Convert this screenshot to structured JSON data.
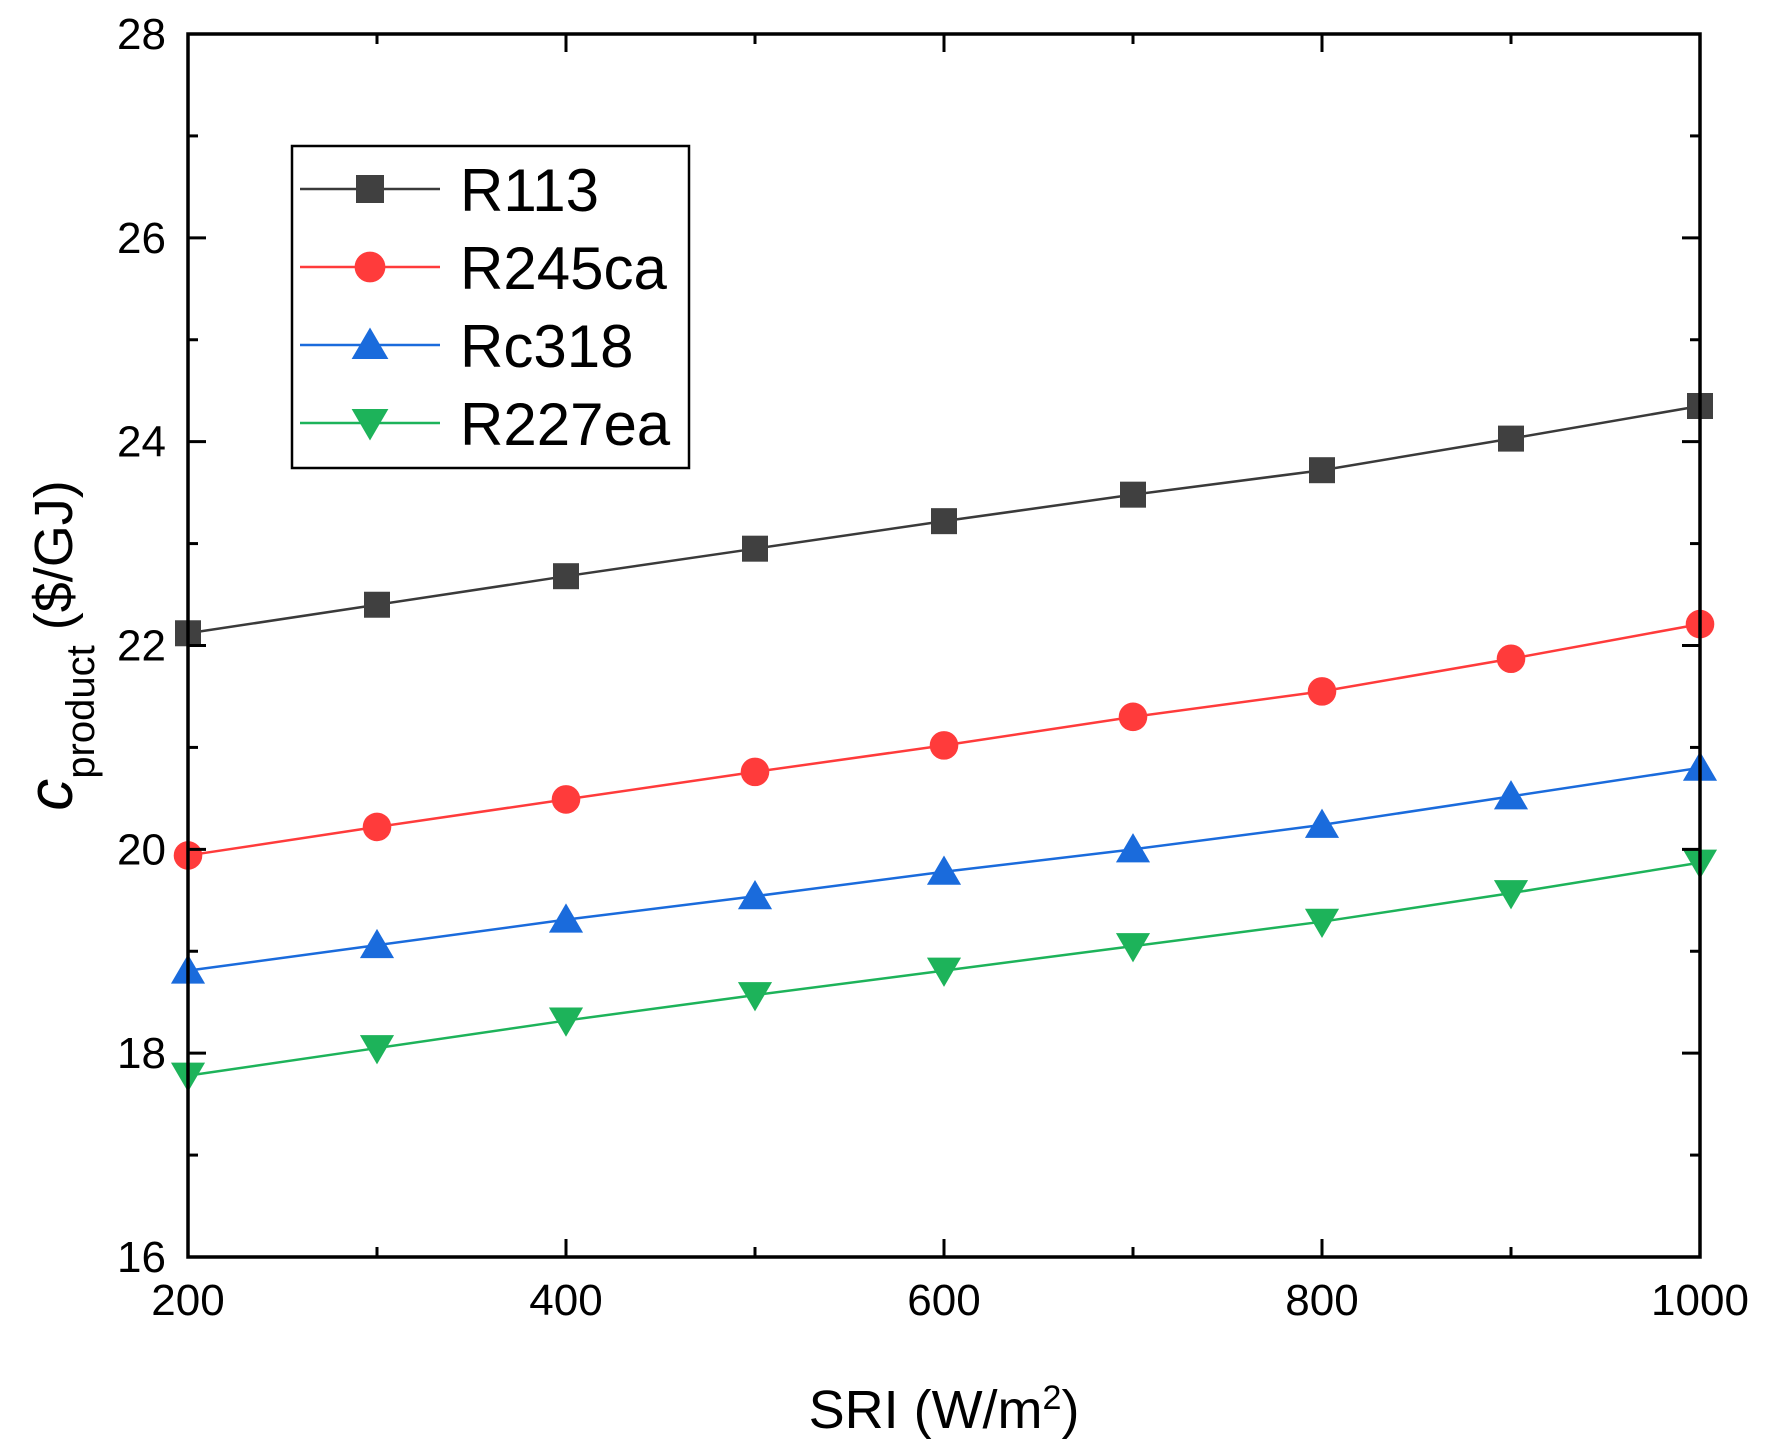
{
  "chart_data": {
    "type": "line",
    "title": "",
    "xlabel": {
      "main": "SRI (W/m",
      "sup": "2",
      "end": ")"
    },
    "ylabel": {
      "main": "c",
      "sub": "product",
      "end": " ($/GJ)"
    },
    "xlim": [
      200,
      1000
    ],
    "ylim": [
      16,
      28
    ],
    "xticks": [
      200,
      400,
      600,
      800,
      1000
    ],
    "yticks": [
      16,
      18,
      20,
      22,
      24,
      26,
      28
    ],
    "xminor": [
      300,
      500,
      700,
      900
    ],
    "yminor": [
      17,
      19,
      21,
      23,
      25,
      27
    ],
    "grid": false,
    "legend_position": "top-left",
    "x": [
      200,
      300,
      400,
      500,
      600,
      700,
      800,
      900,
      1000
    ],
    "series": [
      {
        "name": "R113",
        "color": "#404040",
        "line_color": "#3a3a3a",
        "marker": "square",
        "values": [
          22.12,
          22.4,
          22.68,
          22.95,
          23.22,
          23.48,
          23.72,
          24.03,
          24.35
        ]
      },
      {
        "name": "R245ca",
        "color": "#ff3b3b",
        "line_color": "#ff3b3b",
        "marker": "circle",
        "values": [
          19.94,
          20.22,
          20.49,
          20.76,
          21.02,
          21.3,
          21.55,
          21.87,
          22.21
        ]
      },
      {
        "name": "Rc318",
        "color": "#1a6bdc",
        "line_color": "#1a6bdc",
        "marker": "triangle-up",
        "values": [
          18.81,
          19.06,
          19.31,
          19.54,
          19.78,
          20.0,
          20.24,
          20.52,
          20.8
        ]
      },
      {
        "name": "R227ea",
        "color": "#1db35a",
        "line_color": "#1db35a",
        "marker": "triangle-down",
        "values": [
          17.78,
          18.05,
          18.32,
          18.57,
          18.81,
          19.05,
          19.29,
          19.57,
          19.87
        ]
      }
    ]
  }
}
